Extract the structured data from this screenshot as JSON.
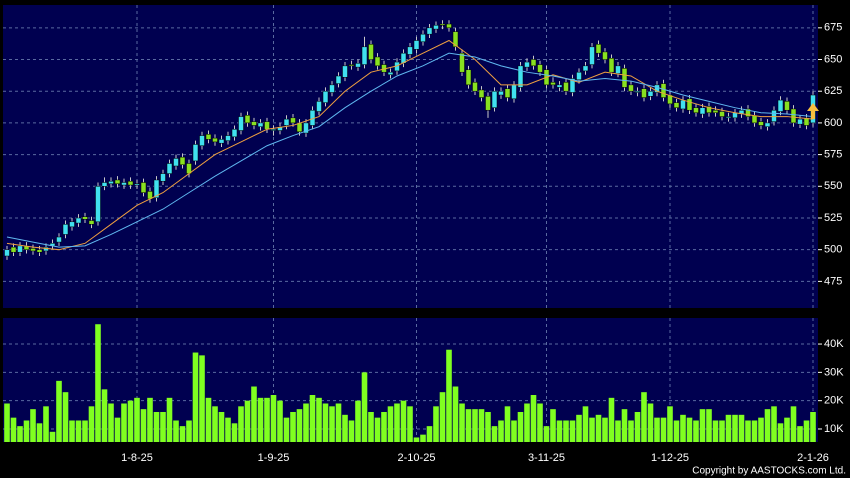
{
  "chart_data": [
    {
      "type": "candlestick",
      "up_color": "#40e0f0",
      "down_color": "#88e020",
      "ylim": [
        454,
        693
      ],
      "yticks": [
        475,
        500,
        525,
        550,
        575,
        600,
        625,
        650,
        675
      ],
      "grid": true,
      "open": [
        495,
        502,
        498,
        503,
        501,
        500,
        499,
        503,
        506,
        512,
        518,
        521,
        526,
        523,
        522,
        550,
        552,
        555,
        551,
        554,
        551,
        553,
        546,
        541,
        554,
        560,
        566,
        573,
        568,
        570,
        582,
        591,
        588,
        584,
        586,
        589,
        594,
        606,
        601,
        597,
        601,
        594,
        594,
        598,
        604,
        600,
        592,
        598,
        609,
        616,
        624,
        631,
        636,
        646,
        644,
        646,
        662,
        652,
        646,
        638,
        641,
        647,
        654,
        658,
        664,
        670,
        674,
        678,
        678,
        672,
        655,
        642,
        632,
        626,
        621,
        612,
        622,
        627,
        619,
        628,
        644,
        650,
        646,
        642,
        632,
        628,
        632,
        624,
        634,
        641,
        646,
        662,
        656,
        651,
        639,
        643,
        630,
        624,
        627,
        621,
        624,
        631,
        622,
        616,
        611,
        619,
        612,
        607,
        613,
        610,
        609,
        604,
        604,
        607,
        611,
        606,
        601,
        597,
        601,
        609,
        617,
        611,
        599,
        604,
        600
      ],
      "high": [
        503,
        505,
        506,
        506,
        504,
        503,
        505,
        508,
        513,
        523,
        525,
        528,
        529,
        526,
        553,
        557,
        557,
        558,
        556,
        557,
        555,
        556,
        549,
        558,
        563,
        571,
        575,
        576,
        571,
        586,
        593,
        594,
        591,
        590,
        593,
        598,
        608,
        609,
        604,
        603,
        604,
        598,
        600,
        606,
        607,
        603,
        603,
        613,
        620,
        628,
        633,
        640,
        648,
        649,
        650,
        668,
        665,
        655,
        649,
        643,
        651,
        658,
        663,
        668,
        673,
        678,
        680,
        681,
        681,
        675,
        658,
        645,
        635,
        629,
        624,
        628,
        628,
        630,
        633,
        648,
        651,
        653,
        649,
        645,
        636,
        633,
        635,
        638,
        643,
        648,
        663,
        665,
        659,
        654,
        648,
        646,
        633,
        628,
        630,
        628,
        633,
        634,
        625,
        619,
        621,
        622,
        615,
        615,
        616,
        613,
        612,
        608,
        611,
        613,
        614,
        609,
        604,
        603,
        613,
        621,
        620,
        614,
        606,
        607,
        625
      ],
      "low": [
        492,
        495,
        495,
        497,
        496,
        495,
        496,
        500,
        503,
        509,
        515,
        518,
        521,
        517,
        519,
        547,
        549,
        549,
        548,
        548,
        548,
        542,
        537,
        538,
        551,
        557,
        563,
        564,
        557,
        567,
        579,
        584,
        582,
        581,
        583,
        586,
        591,
        597,
        595,
        594,
        592,
        590,
        591,
        595,
        597,
        590,
        589,
        595,
        606,
        613,
        621,
        628,
        633,
        642,
        641,
        643,
        647,
        642,
        637,
        635,
        638,
        644,
        651,
        655,
        661,
        667,
        671,
        674,
        672,
        657,
        637,
        627,
        622,
        617,
        604,
        609,
        619,
        617,
        616,
        625,
        641,
        642,
        637,
        627,
        627,
        625,
        622,
        621,
        631,
        638,
        643,
        652,
        647,
        637,
        636,
        625,
        622,
        621,
        617,
        618,
        621,
        617,
        612,
        609,
        608,
        607,
        605,
        604,
        605,
        605,
        602,
        601,
        601,
        604,
        602,
        597,
        595,
        594,
        598,
        606,
        607,
        597,
        596,
        595,
        597
      ],
      "close": [
        500,
        498,
        503,
        500,
        499,
        498,
        502,
        505,
        510,
        520,
        522,
        525,
        524,
        520,
        550,
        553,
        554,
        552,
        553,
        551,
        552,
        545,
        540,
        555,
        560,
        568,
        572,
        567,
        560,
        583,
        590,
        587,
        585,
        587,
        590,
        595,
        605,
        600,
        598,
        600,
        595,
        595,
        597,
        603,
        600,
        593,
        600,
        610,
        617,
        625,
        630,
        637,
        645,
        645,
        647,
        660,
        650,
        645,
        640,
        640,
        648,
        655,
        660,
        665,
        670,
        675,
        677,
        677,
        675,
        660,
        640,
        630,
        625,
        620,
        610,
        625,
        625,
        620,
        630,
        645,
        648,
        645,
        640,
        630,
        630,
        630,
        625,
        635,
        640,
        645,
        660,
        655,
        650,
        640,
        645,
        628,
        625,
        625,
        620,
        625,
        630,
        620,
        615,
        612,
        618,
        610,
        608,
        612,
        608,
        608,
        605,
        605,
        608,
        610,
        605,
        600,
        598,
        600,
        610,
        618,
        610,
        600,
        603,
        598,
        622
      ],
      "lines": [
        {
          "color": "#f0a040",
          "x": [
            0,
            4,
            8,
            12,
            16,
            20,
            24,
            28,
            32,
            36,
            40,
            44,
            48,
            52,
            56,
            60,
            64,
            68,
            72,
            76,
            80,
            84,
            88,
            92,
            96,
            100,
            104,
            108,
            112,
            116,
            120,
            124
          ],
          "values": [
            505,
            502,
            500,
            505,
            520,
            535,
            545,
            560,
            575,
            585,
            595,
            598,
            605,
            625,
            640,
            645,
            655,
            665,
            650,
            630,
            630,
            638,
            632,
            640,
            637,
            625,
            618,
            612,
            608,
            605,
            605,
            603
          ]
        },
        {
          "color": "#60b8f0",
          "x": [
            0,
            4,
            8,
            12,
            16,
            20,
            24,
            28,
            32,
            36,
            40,
            44,
            48,
            52,
            56,
            60,
            64,
            68,
            72,
            76,
            80,
            84,
            88,
            92,
            96,
            100,
            104,
            108,
            112,
            116,
            120,
            124
          ],
          "values": [
            510,
            506,
            502,
            503,
            512,
            522,
            532,
            545,
            558,
            570,
            582,
            590,
            597,
            612,
            625,
            637,
            645,
            655,
            652,
            645,
            640,
            637,
            633,
            635,
            633,
            628,
            622,
            617,
            612,
            608,
            607,
            605
          ]
        }
      ]
    },
    {
      "type": "bar",
      "color": "#80ff20",
      "ylim": [
        5400,
        49200
      ],
      "grid": true,
      "yticks": [
        {
          "value": 10000,
          "label": "10K"
        },
        {
          "value": 20000,
          "label": "20K"
        },
        {
          "value": 30000,
          "label": "30K"
        },
        {
          "value": 40000,
          "label": "40K"
        }
      ],
      "categories": [
        null,
        null,
        null,
        null,
        null,
        null,
        null,
        null,
        null,
        null,
        null,
        null,
        null,
        null,
        null,
        null,
        null,
        null,
        null,
        null,
        "1-8-25",
        null,
        null,
        null,
        null,
        null,
        null,
        null,
        null,
        null,
        null,
        null,
        null,
        null,
        null,
        null,
        null,
        null,
        null,
        null,
        null,
        "1-9-25",
        null,
        null,
        null,
        null,
        null,
        null,
        null,
        null,
        null,
        null,
        null,
        null,
        null,
        null,
        null,
        null,
        null,
        null,
        null,
        null,
        null,
        "2-10-25",
        null,
        null,
        null,
        null,
        null,
        null,
        null,
        null,
        null,
        null,
        null,
        null,
        null,
        null,
        null,
        null,
        null,
        null,
        null,
        "3-11-25",
        null,
        null,
        null,
        null,
        null,
        null,
        null,
        null,
        null,
        null,
        null,
        null,
        null,
        null,
        null,
        null,
        null,
        null,
        "1-12-25",
        null,
        null,
        null,
        null,
        null,
        null,
        null,
        null,
        null,
        null,
        null,
        null,
        null,
        null,
        null,
        null,
        null,
        null,
        null,
        null,
        null,
        "2-1-26"
      ],
      "values": [
        19000,
        14000,
        11000,
        13000,
        17000,
        12000,
        18000,
        9000,
        27000,
        23000,
        13000,
        13000,
        13000,
        18000,
        47000,
        24000,
        19000,
        14000,
        19000,
        20000,
        21000,
        17000,
        21000,
        16000,
        16000,
        21000,
        13000,
        11000,
        13000,
        37000,
        36000,
        21000,
        18000,
        16000,
        14000,
        12000,
        18000,
        20000,
        25000,
        21000,
        21000,
        22000,
        20000,
        14000,
        16000,
        17000,
        19000,
        22000,
        21000,
        19000,
        18000,
        19000,
        15000,
        13000,
        20000,
        30000,
        16000,
        14000,
        16000,
        18000,
        19000,
        20000,
        18000,
        7000,
        8000,
        11000,
        18000,
        23000,
        38000,
        25000,
        19000,
        17000,
        17000,
        17000,
        16000,
        11000,
        13000,
        18000,
        13000,
        16000,
        19000,
        22000,
        19000,
        11000,
        17000,
        13000,
        13000,
        13000,
        15000,
        18000,
        14000,
        15000,
        14000,
        21000,
        13000,
        17000,
        13000,
        16000,
        23000,
        19000,
        14000,
        14000,
        18000,
        13000,
        15000,
        14000,
        13000,
        17000,
        17000,
        13000,
        13000,
        15000,
        15000,
        15000,
        13000,
        13000,
        14000,
        17000,
        18000,
        12000,
        14000,
        18000,
        11000,
        13000,
        16000
      ]
    }
  ],
  "copyright": "Copyright by AASTOCKS.com Ltd."
}
